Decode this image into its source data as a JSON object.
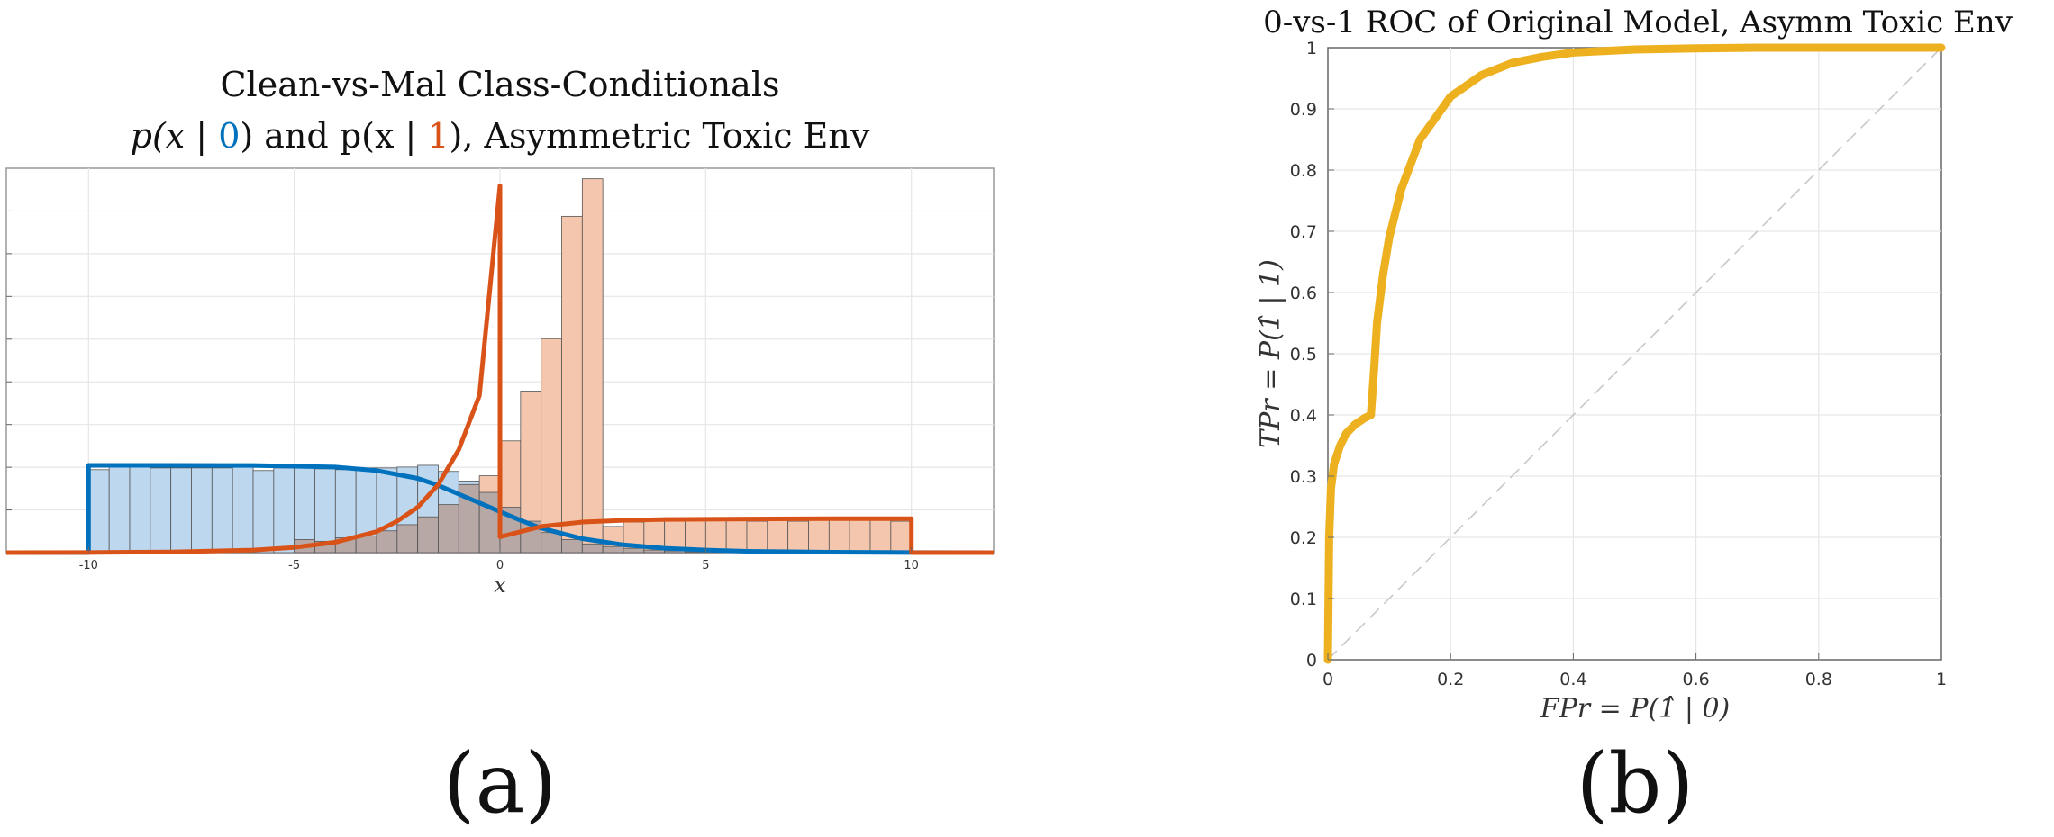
{
  "colors": {
    "class0": "#0072BD",
    "class1": "#D95319",
    "hist0": "#BDD7EE",
    "hist1": "#F4C6AD",
    "histOverlap": "#B8A8A5",
    "roc": "#EDB120",
    "diag": "#C8C8C8",
    "grid": "#E6E6E6",
    "axis": "#666666",
    "text": "#111111"
  },
  "chart_data": [
    {
      "id": "a",
      "type": "bar",
      "title_line1": "Clean-vs-Mal Class-Conditionals",
      "title_line2": {
        "p1": "p(x | ",
        "c0": "0",
        "mid": ") and p(x | ",
        "c1": "1",
        "end": "), Asymmetric Toxic Env"
      },
      "xlabel": "x",
      "ylabel": "",
      "xlim": [
        -12,
        12
      ],
      "ylim": [
        0,
        0.44
      ],
      "xticks": [
        "-10",
        "-5",
        "0",
        "5",
        "10"
      ],
      "grid": true,
      "subplot_label": "(a)",
      "histogram": {
        "bin_width": 0.5,
        "bin_start": -10,
        "class0_counts": [
          0.095,
          0.102,
          0.1,
          0.097,
          0.097,
          0.097,
          0.097,
          0.098,
          0.094,
          0.097,
          0.1,
          0.096,
          0.095,
          0.097,
          0.097,
          0.098,
          0.1,
          0.093,
          0.082,
          0.069,
          0.052,
          0.036,
          0.023,
          0.015,
          0.01,
          0.007,
          0.005,
          0.003,
          0.002,
          0.001,
          0.0,
          0.0,
          0.0,
          0.0,
          0.0,
          0.0,
          0.0,
          0.0,
          0.0,
          0.0
        ],
        "class1_counts": [
          0.0,
          0.0,
          0.0,
          0.0,
          0.0,
          0.0,
          0.0,
          0.0,
          0.0,
          0.0,
          0.015,
          0.013,
          0.017,
          0.019,
          0.025,
          0.032,
          0.041,
          0.055,
          0.078,
          0.088,
          0.128,
          0.185,
          0.245,
          0.385,
          0.428,
          0.03,
          0.035,
          0.036,
          0.038,
          0.037,
          0.038,
          0.038,
          0.036,
          0.037,
          0.036,
          0.039,
          0.037,
          0.04,
          0.039,
          0.036
        ]
      },
      "class0_density": {
        "name": "p(x | 0)",
        "form": "uniform[-10,0] mixed with smooth tail",
        "plateau": 0.1,
        "x": [
          -12,
          -10,
          -10,
          -8,
          -6,
          -4,
          -3,
          -2,
          -1.5,
          -1,
          -0.5,
          0,
          0.5,
          1,
          2,
          3,
          4,
          5,
          6,
          8,
          10,
          12
        ],
        "y": [
          0,
          0,
          0.1,
          0.1,
          0.0998,
          0.098,
          0.094,
          0.085,
          0.077,
          0.067,
          0.057,
          0.047,
          0.037,
          0.028,
          0.016,
          0.009,
          0.005,
          0.003,
          0.0015,
          0.0005,
          0.0001,
          0
        ]
      },
      "class1_density": {
        "name": "p(x | 1)",
        "x": [
          -12,
          -10,
          -8,
          -6,
          -5,
          -4,
          -3,
          -2.5,
          -2,
          -1.5,
          -1,
          -0.5,
          0,
          0,
          1,
          2,
          3,
          4,
          6,
          8,
          10,
          10,
          12
        ],
        "y": [
          0,
          0.0001,
          0.0008,
          0.003,
          0.006,
          0.012,
          0.024,
          0.036,
          0.052,
          0.078,
          0.118,
          0.18,
          0.42,
          0.018,
          0.03,
          0.035,
          0.037,
          0.038,
          0.0385,
          0.039,
          0.039,
          0,
          0
        ]
      }
    },
    {
      "id": "b",
      "type": "line",
      "title": "0-vs-1 ROC of Original Model, Asymm Toxic Env",
      "xlabel": "FPr = P(1̂ | 0)",
      "ylabel": "TPr = P(1̂ | 1)",
      "xlim": [
        0,
        1
      ],
      "ylim": [
        0,
        1
      ],
      "xticks": [
        "0",
        "0.2",
        "0.4",
        "0.6",
        "0.8",
        "1"
      ],
      "yticks": [
        "0",
        "0.1",
        "0.2",
        "0.3",
        "0.4",
        "0.5",
        "0.6",
        "0.7",
        "0.8",
        "0.9",
        "1"
      ],
      "grid": true,
      "subplot_label": "(b)",
      "series": [
        {
          "x": [
            0,
            0.002,
            0.005,
            0.01,
            0.02,
            0.03,
            0.045,
            0.06,
            0.07,
            0.075,
            0.08,
            0.09,
            0.1,
            0.12,
            0.15,
            0.2,
            0.25,
            0.3,
            0.35,
            0.4,
            0.5,
            0.6,
            0.7,
            0.8,
            0.9,
            1.0
          ],
          "y": [
            0,
            0.2,
            0.28,
            0.32,
            0.35,
            0.37,
            0.385,
            0.395,
            0.4,
            0.47,
            0.55,
            0.63,
            0.69,
            0.77,
            0.85,
            0.92,
            0.955,
            0.975,
            0.985,
            0.992,
            0.997,
            0.999,
            1.0,
            1.0,
            1.0,
            1.0
          ]
        }
      ],
      "diagonal": {
        "x": [
          0,
          1
        ],
        "y": [
          0,
          1
        ]
      }
    }
  ]
}
